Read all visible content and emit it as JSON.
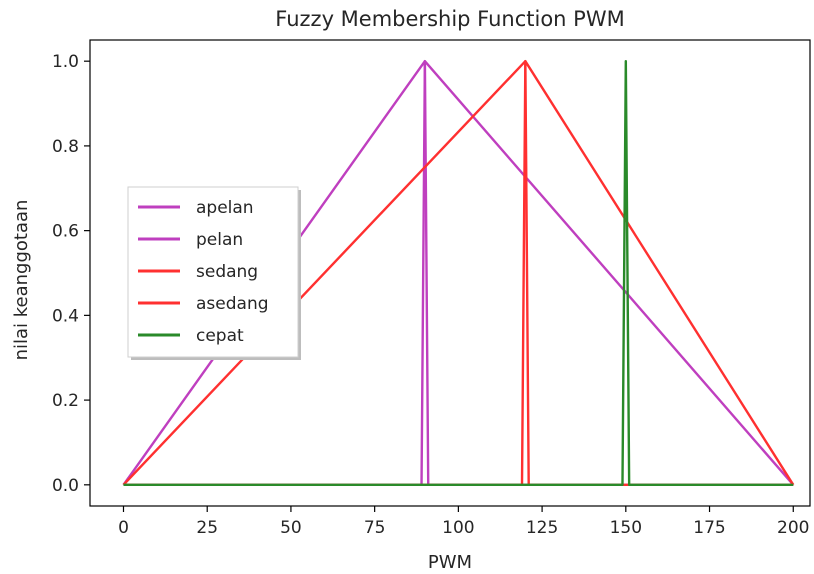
{
  "chart_data": {
    "type": "line",
    "title": "Fuzzy Membership Function PWM",
    "xlabel": "PWM",
    "ylabel": "nilai keanggotaan",
    "xlim": [
      -10,
      205
    ],
    "ylim": [
      -0.05,
      1.05
    ],
    "xticks": [
      0,
      25,
      50,
      75,
      100,
      125,
      150,
      175,
      200
    ],
    "xtick_labels": [
      "0",
      "25",
      "50",
      "75",
      "100",
      "125",
      "150",
      "175",
      "200"
    ],
    "yticks": [
      0.0,
      0.2,
      0.4,
      0.6,
      0.8,
      1.0
    ],
    "ytick_labels": [
      "0.0",
      "0.2",
      "0.4",
      "0.6",
      "0.8",
      "1.0"
    ],
    "grid": false,
    "legend_position": "center-left",
    "series": [
      {
        "name": "apelan",
        "color": "#bf3fbf",
        "x": [
          0,
          89,
          90,
          200
        ],
        "y": [
          0,
          0,
          1,
          0
        ]
      },
      {
        "name": "pelan",
        "color": "#bf3fbf",
        "x": [
          0,
          90,
          91,
          200
        ],
        "y": [
          0,
          1,
          0,
          0
        ]
      },
      {
        "name": "sedang",
        "color": "#ff3030",
        "x": [
          0,
          119,
          120,
          200
        ],
        "y": [
          0,
          0,
          1,
          0
        ]
      },
      {
        "name": "asedang",
        "color": "#ff3030",
        "x": [
          0,
          120,
          121,
          200
        ],
        "y": [
          0,
          1,
          0,
          0
        ]
      },
      {
        "name": "cepat",
        "color": "#2a8a2a",
        "x": [
          0,
          149,
          150,
          151,
          200
        ],
        "y": [
          0,
          0,
          1,
          0,
          0
        ]
      }
    ]
  }
}
